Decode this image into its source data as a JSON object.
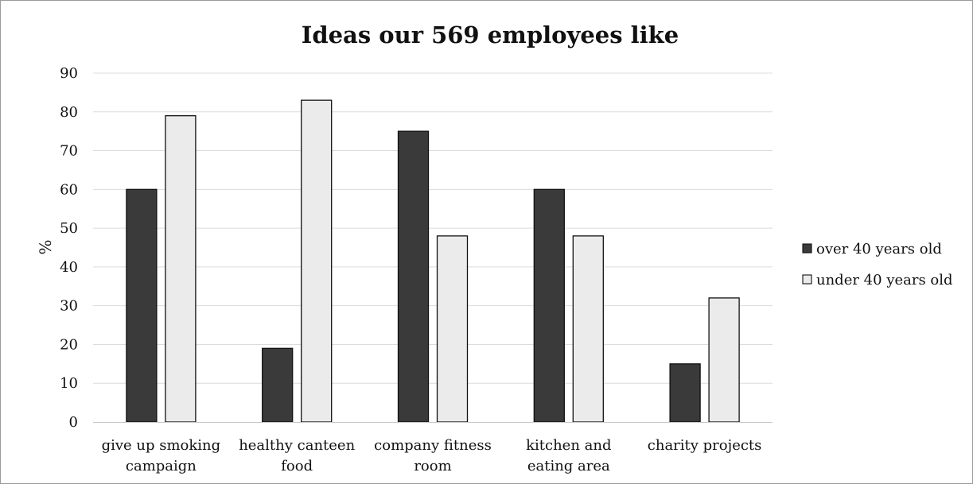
{
  "chart_data": {
    "type": "bar",
    "title": "Ideas our 569 employees like",
    "xlabel": "",
    "ylabel": "%",
    "ylim": [
      0,
      90
    ],
    "yticks": [
      0,
      10,
      20,
      30,
      40,
      50,
      60,
      70,
      80,
      90
    ],
    "grid": true,
    "legend_position": "right",
    "categories": [
      [
        "give up smoking",
        "campaign"
      ],
      [
        "healthy canteen",
        "food"
      ],
      [
        "company fitness",
        "room"
      ],
      [
        "kitchen and",
        "eating area"
      ],
      [
        "charity projects"
      ]
    ],
    "series": [
      {
        "name": "over 40 years old",
        "values": [
          60,
          19,
          75,
          60,
          15
        ],
        "color": "#3a3a3a"
      },
      {
        "name": "under 40 years old",
        "values": [
          79,
          83,
          48,
          48,
          32
        ],
        "color": "#ebebeb"
      }
    ]
  }
}
